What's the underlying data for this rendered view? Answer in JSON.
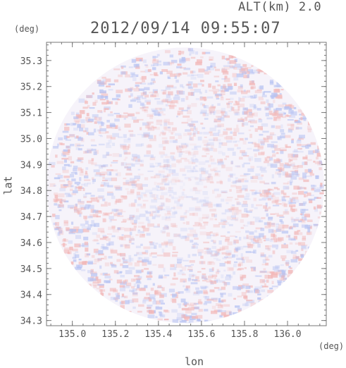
{
  "header": {
    "altitude_label": "ALT(km) 2.0",
    "datetime": "2012/09/14 09:55:07"
  },
  "chart_data": {
    "type": "heatmap",
    "title": "2012/09/14 09:55:07",
    "subtitle": "ALT(km) 2.0",
    "xlabel": "lon",
    "ylabel": "lat",
    "x_unit": "(deg)",
    "y_unit": "(deg)",
    "xlim": [
      134.88,
      136.18
    ],
    "ylim": [
      34.28,
      35.37
    ],
    "x_ticks": [
      135.0,
      135.2,
      135.4,
      135.6,
      135.8,
      136.0
    ],
    "x_tick_labels": [
      "135.0",
      "135.2",
      "135.4",
      "135.6",
      "135.8",
      "136.0"
    ],
    "y_ticks": [
      34.3,
      34.4,
      34.5,
      34.6,
      34.7,
      34.8,
      34.9,
      35.0,
      35.1,
      35.2,
      35.3
    ],
    "y_tick_labels": [
      "34.3",
      "34.4",
      "34.5",
      "34.6",
      "34.7",
      "34.8",
      "34.9",
      "35.0",
      "35.1",
      "35.2",
      "35.3"
    ],
    "grid": false,
    "legend": "none",
    "domain": {
      "shape": "circle",
      "center": [
        135.525,
        34.82
      ],
      "radius_lon": 0.645,
      "radius_lat": 0.53
    },
    "colors": {
      "positive": "#f2b7b7",
      "negative": "#b7c3f2",
      "neutral": "#f6f3fa",
      "axis": "#777777",
      "text": "#555555"
    }
  }
}
